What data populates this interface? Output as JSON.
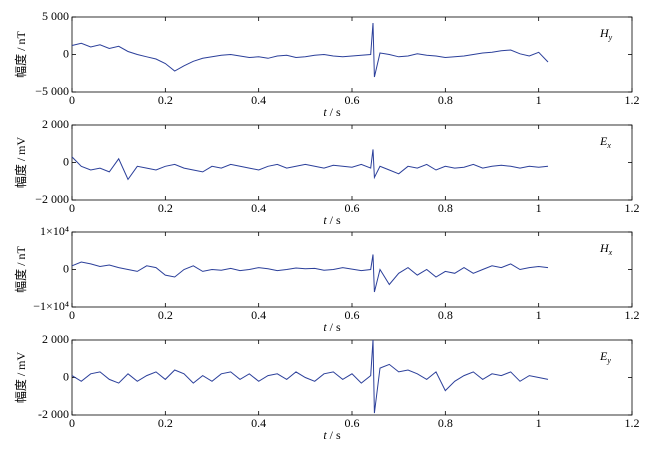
{
  "chart_data": [
    {
      "type": "line",
      "xlabel_var": "t",
      "xlabel_unit": "/ s",
      "ylabel": "幅度 / nT",
      "annotation": {
        "symbol": "H",
        "subscript": "y"
      },
      "xlim": [
        0,
        1.2
      ],
      "xticks": [
        0,
        0.2,
        0.4,
        0.6,
        0.8,
        1,
        1.2
      ],
      "ylim": [
        -5000,
        5000
      ],
      "yticks": [
        {
          "value": 5000,
          "label": "5 000"
        },
        0,
        {
          "value": -5000,
          "label": "−5 000"
        }
      ],
      "x": [
        0,
        0.02,
        0.04,
        0.06,
        0.08,
        0.1,
        0.12,
        0.14,
        0.16,
        0.18,
        0.2,
        0.22,
        0.24,
        0.26,
        0.28,
        0.3,
        0.32,
        0.34,
        0.36,
        0.38,
        0.4,
        0.42,
        0.44,
        0.46,
        0.48,
        0.5,
        0.52,
        0.54,
        0.56,
        0.58,
        0.6,
        0.62,
        0.64,
        0.645,
        0.648,
        0.66,
        0.68,
        0.7,
        0.72,
        0.74,
        0.76,
        0.78,
        0.8,
        0.82,
        0.84,
        0.86,
        0.88,
        0.9,
        0.92,
        0.94,
        0.96,
        0.98,
        1,
        1.02
      ],
      "series": [
        {
          "color": "#2b3f9a",
          "values": [
            1200,
            1500,
            1000,
            1300,
            800,
            1100,
            400,
            0,
            -300,
            -600,
            -1200,
            -2200,
            -1500,
            -900,
            -500,
            -300,
            -100,
            0,
            -200,
            -400,
            -300,
            -500,
            -200,
            -100,
            -400,
            -300,
            -100,
            0,
            -200,
            -300,
            -200,
            -100,
            0,
            4200,
            -3000,
            200,
            0,
            -300,
            -200,
            100,
            -100,
            -200,
            -400,
            -300,
            -200,
            0,
            200,
            300,
            500,
            600,
            100,
            -200,
            300,
            -1000
          ]
        }
      ]
    },
    {
      "type": "line",
      "xlabel_var": "t",
      "xlabel_unit": "/ s",
      "ylabel": "幅度 / mV",
      "annotation": {
        "symbol": "E",
        "subscript": "x"
      },
      "xlim": [
        0,
        1.2
      ],
      "xticks": [
        0,
        0.2,
        0.4,
        0.6,
        0.8,
        1,
        1.2
      ],
      "ylim": [
        -2000,
        2000
      ],
      "yticks": [
        {
          "value": 2000,
          "label": "2 000"
        },
        0,
        {
          "value": -2000,
          "label": "−2 000"
        }
      ],
      "x": [
        0,
        0.02,
        0.04,
        0.06,
        0.08,
        0.1,
        0.12,
        0.14,
        0.16,
        0.18,
        0.2,
        0.22,
        0.24,
        0.26,
        0.28,
        0.3,
        0.32,
        0.34,
        0.36,
        0.38,
        0.4,
        0.42,
        0.44,
        0.46,
        0.48,
        0.5,
        0.52,
        0.54,
        0.56,
        0.58,
        0.6,
        0.62,
        0.64,
        0.645,
        0.648,
        0.66,
        0.68,
        0.7,
        0.72,
        0.74,
        0.76,
        0.78,
        0.8,
        0.82,
        0.84,
        0.86,
        0.88,
        0.9,
        0.92,
        0.94,
        0.96,
        0.98,
        1,
        1.02
      ],
      "series": [
        {
          "color": "#2b3f9a",
          "values": [
            300,
            -200,
            -400,
            -300,
            -500,
            200,
            -900,
            -200,
            -300,
            -400,
            -200,
            -100,
            -300,
            -400,
            -500,
            -200,
            -300,
            -100,
            -200,
            -300,
            -400,
            -200,
            -100,
            -300,
            -200,
            -100,
            -200,
            -300,
            -150,
            -200,
            -250,
            -100,
            -300,
            700,
            -800,
            -200,
            -400,
            -600,
            -200,
            -300,
            -100,
            -400,
            -200,
            -300,
            -250,
            -100,
            -300,
            -200,
            -150,
            -200,
            -300,
            -200,
            -250,
            -200
          ]
        }
      ]
    },
    {
      "type": "line",
      "xlabel_var": "t",
      "xlabel_unit": "/ s",
      "ylabel": "幅度 / nT",
      "annotation": {
        "symbol": "H",
        "subscript": "x"
      },
      "xlim": [
        0,
        1.2
      ],
      "xticks": [
        0,
        0.2,
        0.4,
        0.6,
        0.8,
        1,
        1.2
      ],
      "ylim": [
        -10000,
        10000
      ],
      "yticks": [
        {
          "value": 10000,
          "label": "1×10⁴"
        },
        0,
        {
          "value": -10000,
          "label": "−1×10⁴"
        }
      ],
      "x": [
        0,
        0.02,
        0.04,
        0.06,
        0.08,
        0.1,
        0.12,
        0.14,
        0.16,
        0.18,
        0.2,
        0.22,
        0.24,
        0.26,
        0.28,
        0.3,
        0.32,
        0.34,
        0.36,
        0.38,
        0.4,
        0.42,
        0.44,
        0.46,
        0.48,
        0.5,
        0.52,
        0.54,
        0.56,
        0.58,
        0.6,
        0.62,
        0.64,
        0.645,
        0.648,
        0.66,
        0.68,
        0.7,
        0.72,
        0.74,
        0.76,
        0.78,
        0.8,
        0.82,
        0.84,
        0.86,
        0.88,
        0.9,
        0.92,
        0.94,
        0.96,
        0.98,
        1,
        1.02
      ],
      "series": [
        {
          "color": "#2b3f9a",
          "values": [
            1000,
            2000,
            1500,
            800,
            1200,
            500,
            0,
            -500,
            1000,
            500,
            -1500,
            -2000,
            0,
            1000,
            -500,
            0,
            -200,
            300,
            -300,
            0,
            500,
            200,
            -300,
            0,
            400,
            200,
            300,
            -200,
            0,
            500,
            100,
            -300,
            0,
            4000,
            -6000,
            0,
            -4000,
            -1000,
            500,
            -1500,
            0,
            -2000,
            -500,
            -1000,
            500,
            -1000,
            0,
            1000,
            500,
            1500,
            0,
            500,
            800,
            500
          ]
        }
      ]
    },
    {
      "type": "line",
      "xlabel_var": "t",
      "xlabel_unit": "/ s",
      "ylabel": "幅度 / mV",
      "annotation": {
        "symbol": "E",
        "subscript": "y"
      },
      "xlim": [
        0,
        1.2
      ],
      "xticks": [
        0,
        0.2,
        0.4,
        0.6,
        0.8,
        1,
        1.2
      ],
      "ylim": [
        -2000,
        2000
      ],
      "yticks": [
        {
          "value": 2000,
          "label": "2 000"
        },
        0,
        {
          "value": -2000,
          "label": "-2 000"
        }
      ],
      "x": [
        0,
        0.02,
        0.04,
        0.06,
        0.08,
        0.1,
        0.12,
        0.14,
        0.16,
        0.18,
        0.2,
        0.22,
        0.24,
        0.26,
        0.28,
        0.3,
        0.32,
        0.34,
        0.36,
        0.38,
        0.4,
        0.42,
        0.44,
        0.46,
        0.48,
        0.5,
        0.52,
        0.54,
        0.56,
        0.58,
        0.6,
        0.62,
        0.64,
        0.645,
        0.648,
        0.66,
        0.68,
        0.7,
        0.72,
        0.74,
        0.76,
        0.78,
        0.8,
        0.82,
        0.84,
        0.86,
        0.88,
        0.9,
        0.92,
        0.94,
        0.96,
        0.98,
        1,
        1.02
      ],
      "series": [
        {
          "color": "#2b3f9a",
          "values": [
            100,
            -200,
            200,
            300,
            -100,
            -300,
            200,
            -200,
            100,
            300,
            -100,
            400,
            200,
            -300,
            100,
            -200,
            200,
            300,
            -100,
            200,
            -200,
            100,
            200,
            -100,
            300,
            0,
            -200,
            200,
            300,
            -100,
            200,
            -300,
            100,
            2000,
            -1900,
            500,
            700,
            300,
            400,
            200,
            -100,
            300,
            -700,
            -200,
            100,
            300,
            -100,
            200,
            100,
            300,
            -200,
            100,
            0,
            -100
          ]
        }
      ]
    }
  ]
}
